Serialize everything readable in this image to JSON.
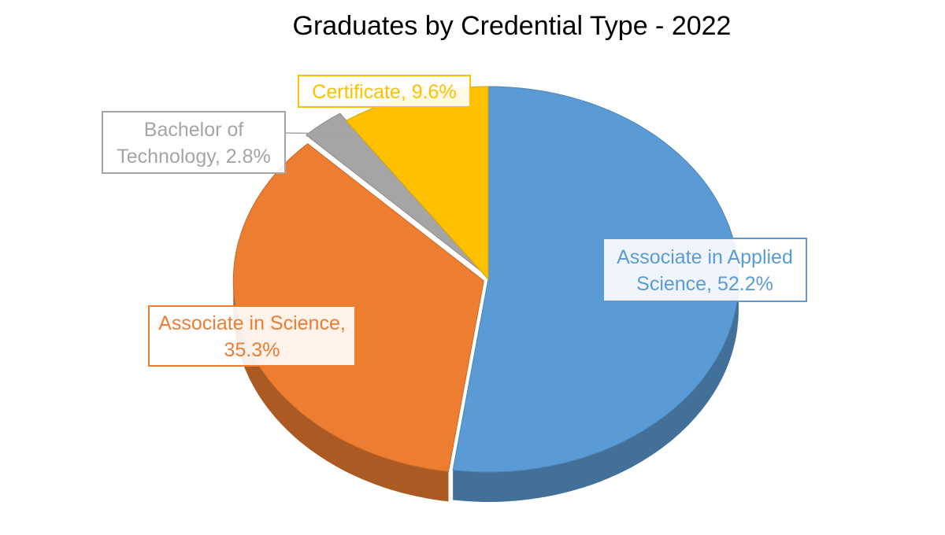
{
  "chart_data": {
    "type": "pie",
    "title": "Graduates by Credential Type - 2022",
    "unit": "%",
    "slices": [
      {
        "label": "Associate in Applied Science",
        "value": 52.2,
        "color": "#5b9bd5",
        "label_lines": [
          "Associate in Applied",
          "Science, 52.2%"
        ]
      },
      {
        "label": "Associate in Science",
        "value": 35.3,
        "color": "#ed7d31",
        "label_lines": [
          "Associate in Science,",
          "35.3%"
        ]
      },
      {
        "label": "Bachelor of Technology",
        "value": 2.8,
        "color": "#a5a5a5",
        "label_lines": [
          "Bachelor of",
          "Technology, 2.8%"
        ]
      },
      {
        "label": "Certificate",
        "value": 9.6,
        "color": "#ffc000",
        "label_lines": [
          "Certificate, 9.6%"
        ]
      }
    ],
    "legend": "none"
  }
}
